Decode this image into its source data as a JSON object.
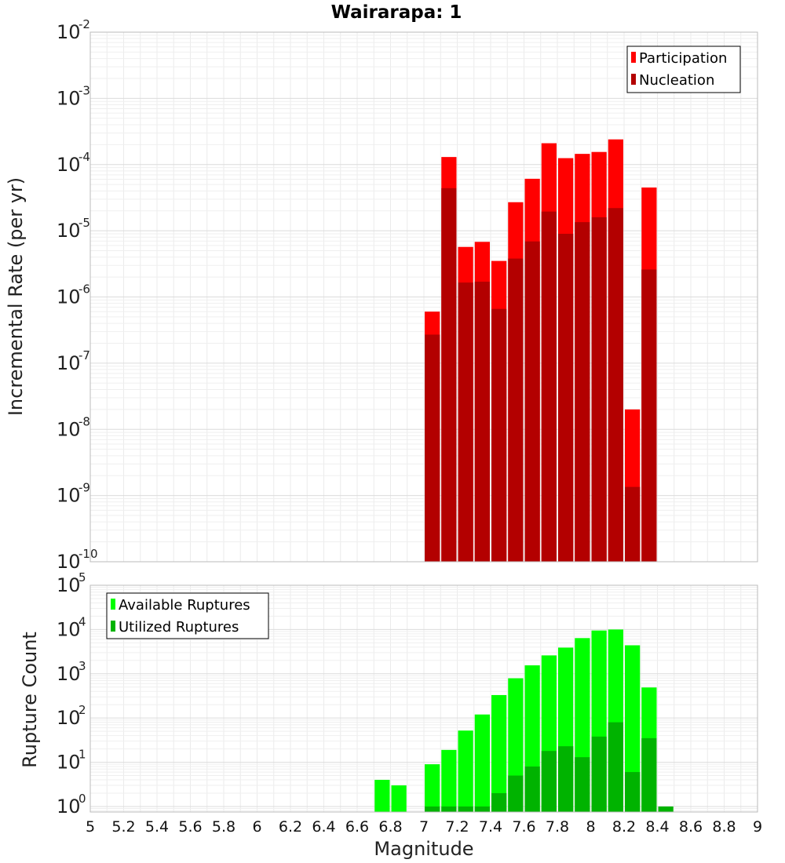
{
  "chart_data": [
    {
      "type": "bar",
      "title": "Wairarapa: 1",
      "xlabel": "",
      "ylabel": "Incremental Rate (per yr)",
      "yscale": "log",
      "ylim": [
        1e-10,
        0.01
      ],
      "xlim": [
        5,
        9
      ],
      "bar_width": 0.1,
      "grid": true,
      "legend_position": "top-right",
      "ytick_exponents": [
        "-10",
        "-9",
        "-8",
        "-7",
        "-6",
        "-5",
        "-4",
        "-3",
        "-2"
      ],
      "series": [
        {
          "name": "Participation",
          "color": "#ff0000",
          "x": [
            7.05,
            7.15,
            7.25,
            7.35,
            7.45,
            7.55,
            7.65,
            7.75,
            7.85,
            7.95,
            8.05,
            8.15,
            8.25,
            8.35
          ],
          "values": [
            6e-07,
            0.00013,
            5.7e-06,
            6.8e-06,
            3.5e-06,
            2.7e-05,
            6.1e-05,
            0.00021,
            0.000125,
            0.000145,
            0.000155,
            0.00024,
            2e-08,
            4.5e-05
          ]
        },
        {
          "name": "Nucleation",
          "color": "#b30000",
          "x": [
            7.05,
            7.15,
            7.25,
            7.35,
            7.45,
            7.55,
            7.65,
            7.75,
            7.85,
            7.95,
            8.05,
            8.15,
            8.25,
            8.35
          ],
          "values": [
            2.7e-07,
            4.4e-05,
            1.65e-06,
            1.7e-06,
            6.6e-07,
            3.8e-06,
            6.9e-06,
            1.95e-05,
            9e-06,
            1.35e-05,
            1.6e-05,
            2.2e-05,
            1.35e-09,
            2.6e-06
          ]
        }
      ]
    },
    {
      "type": "bar",
      "xlabel": "Magnitude",
      "ylabel": "Rupture Count",
      "yscale": "log",
      "ylim": [
        0.75,
        100000.0
      ],
      "xlim": [
        5,
        9
      ],
      "bar_width": 0.1,
      "grid": true,
      "legend_position": "top-left",
      "xticks": [
        "5",
        "5.2",
        "5.4",
        "5.6",
        "5.8",
        "6",
        "6.2",
        "6.4",
        "6.6",
        "6.8",
        "7",
        "7.2",
        "7.4",
        "7.6",
        "7.8",
        "8",
        "8.2",
        "8.4",
        "8.6",
        "8.8",
        "9"
      ],
      "ytick_exponents": [
        "0",
        "1",
        "2",
        "3",
        "4",
        "5"
      ],
      "series": [
        {
          "name": "Available Ruptures",
          "color": "#00ff00",
          "x": [
            6.75,
            6.85,
            7.05,
            7.15,
            7.25,
            7.35,
            7.45,
            7.55,
            7.65,
            7.75,
            7.85,
            7.95,
            8.05,
            8.15,
            8.25,
            8.35
          ],
          "values": [
            4,
            3,
            9,
            19,
            52,
            120,
            330,
            790,
            1550,
            2600,
            3900,
            6400,
            9500,
            10000,
            4400,
            490
          ]
        },
        {
          "name": "Utilized Ruptures",
          "color": "#00b300",
          "x": [
            7.05,
            7.15,
            7.25,
            7.35,
            7.45,
            7.55,
            7.65,
            7.75,
            7.85,
            7.95,
            8.05,
            8.15,
            8.25,
            8.35,
            8.45
          ],
          "values": [
            1,
            1,
            1,
            1,
            2,
            5,
            8,
            18,
            23,
            13,
            38,
            80,
            6,
            35,
            1
          ]
        }
      ]
    }
  ]
}
